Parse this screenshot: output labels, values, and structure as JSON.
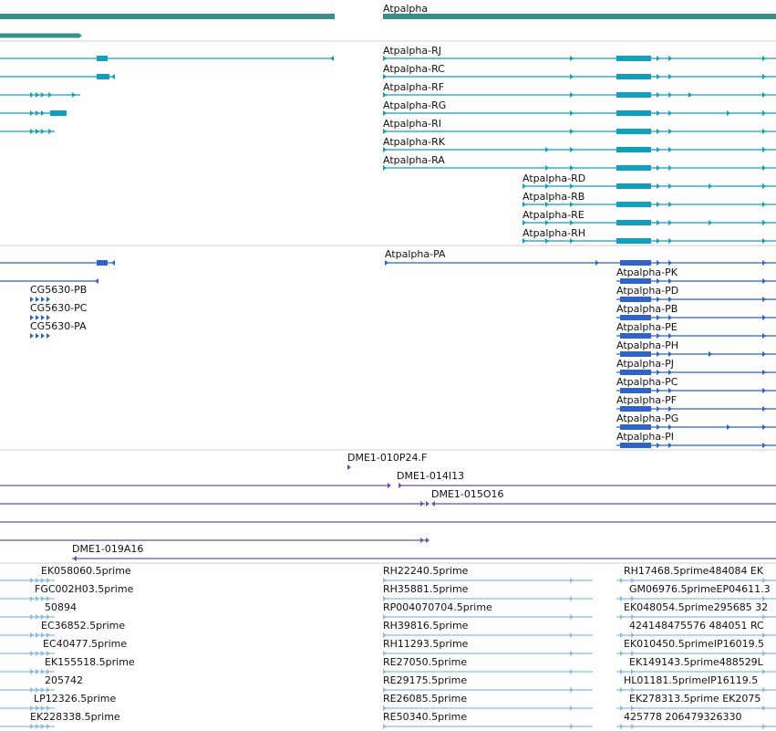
{
  "colors": {
    "gene": "#3a9089",
    "transcript": "#0f9fbf",
    "protein": "#2f63c9",
    "clone": "#6c52a8",
    "est": "#8bbede",
    "divider": "#cfcfcf"
  },
  "gene_track": {
    "genes": [
      {
        "label": ""
      },
      {
        "label": ""
      },
      {
        "label": "Atpalpha"
      }
    ]
  },
  "transcript_track": {
    "left_rows": [
      {
        "label": ""
      },
      {
        "label": ""
      },
      {
        "label": ""
      },
      {
        "label": ""
      },
      {
        "label": ""
      }
    ],
    "right_rows": [
      {
        "label": "Atpalpha-RJ"
      },
      {
        "label": "Atpalpha-RC"
      },
      {
        "label": "Atpalpha-RF"
      },
      {
        "label": "Atpalpha-RG"
      },
      {
        "label": "Atpalpha-RI"
      },
      {
        "label": "Atpalpha-RK"
      },
      {
        "label": "Atpalpha-RA"
      },
      {
        "label": "Atpalpha-RD"
      },
      {
        "label": "Atpalpha-RB"
      },
      {
        "label": "Atpalpha-RE"
      },
      {
        "label": "Atpalpha-RH"
      }
    ]
  },
  "protein_track": {
    "left_rows": [
      {
        "label": ""
      },
      {
        "label": ""
      },
      {
        "label": "CG5630-PB"
      },
      {
        "label": "CG5630-PC"
      },
      {
        "label": "CG5630-PA"
      }
    ],
    "right_rows": [
      {
        "label": "Atpalpha-PA"
      },
      {
        "label": "Atpalpha-PK"
      },
      {
        "label": "Atpalpha-PD"
      },
      {
        "label": "Atpalpha-PB"
      },
      {
        "label": "Atpalpha-PE"
      },
      {
        "label": "Atpalpha-PH"
      },
      {
        "label": "Atpalpha-PJ"
      },
      {
        "label": "Atpalpha-PC"
      },
      {
        "label": "Atpalpha-PF"
      },
      {
        "label": "Atpalpha-PG"
      },
      {
        "label": "Atpalpha-PI"
      }
    ]
  },
  "clone_track": {
    "rows": [
      {
        "label": "DME1-010P24.F"
      },
      {
        "label": "DME1-014I13"
      },
      {
        "label": "DME1-015O16"
      },
      {
        "label": ""
      },
      {
        "label": ""
      },
      {
        "label": "DME1-019A16"
      }
    ]
  },
  "est_track": {
    "left_labels": [
      "EK058060.5prime",
      "FGC002H03.5prime",
      "50894",
      "EC36852.5prime",
      "EC40477.5prime",
      "EK155518.5prime",
      "205742",
      "LP12326.5prime",
      "EK228338.5prime"
    ],
    "mid_labels": [
      "RH22240.5prime",
      "RH35881.5prime",
      "RP004070704.5prime",
      "RH39816.5prime",
      "RH11293.5prime",
      "RE27050.5prime",
      "RE29175.5prime",
      "RE26085.5prime",
      "RE50340.5prime"
    ],
    "right_labels": [
      "RH17468.5prime484084 EK",
      "GM06976.5primeEP04611.3",
      "EK048054.5prime295685  32",
      "424148475576 484051 RC",
      "EK010450.5primeIP16019.5",
      "EK149143.5prime488529L",
      "HL01181.5primeIP16119.5",
      "EK278313.5prime  EK2075",
      "425778    206479326330"
    ]
  }
}
